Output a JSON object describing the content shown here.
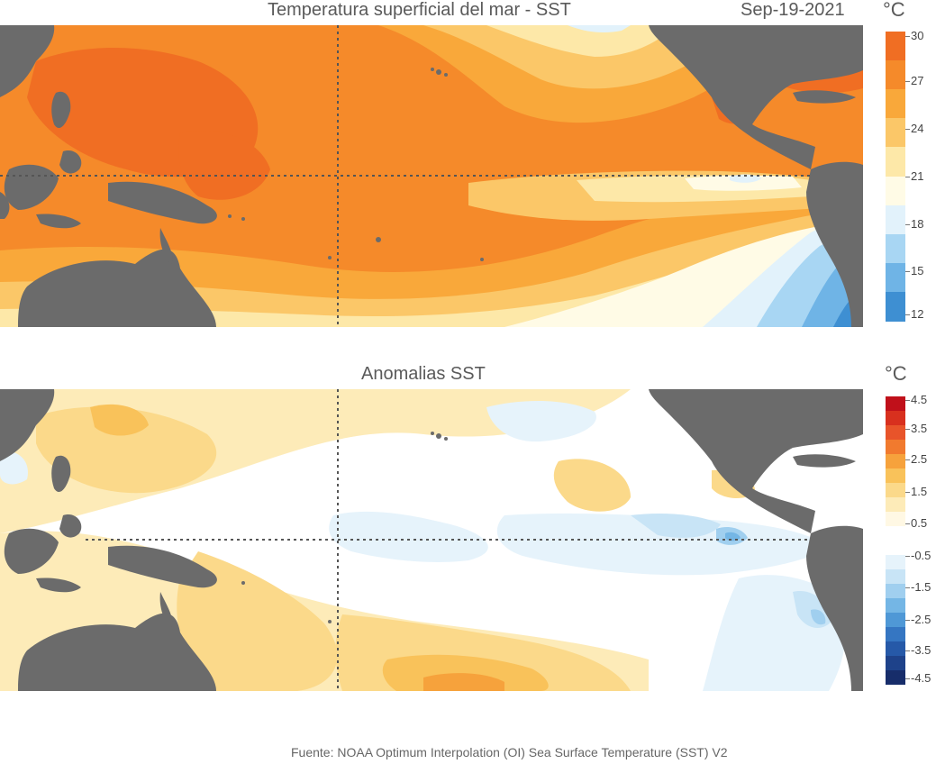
{
  "sst_panel": {
    "title": "Temperatura superficial del mar - SST",
    "date": "Sep-19-2021",
    "unit": "°C",
    "colorbar": {
      "ticks": [
        "30",
        "27",
        "24",
        "21",
        "18",
        "15",
        "12"
      ],
      "colors": [
        "#f06e23",
        "#f58a2a",
        "#f9a83a",
        "#fbc768",
        "#fde8a8",
        "#fffbe6",
        "#e2f2fb",
        "#a8d6f3",
        "#6fb4e6",
        "#3e8fd2"
      ]
    }
  },
  "anomaly_panel": {
    "title": "Anomalias SST",
    "unit": "°C",
    "colorbar": {
      "ticks": [
        "4.5",
        "3.5",
        "2.5",
        "1.5",
        "0.5",
        "-0.5",
        "-1.5",
        "-2.5",
        "-3.5",
        "-4.5"
      ],
      "colors": [
        "#c0101a",
        "#d8301e",
        "#e8542a",
        "#f17a2e",
        "#f6a23c",
        "#f9c25a",
        "#fbd98a",
        "#fdebb8",
        "#fff8e4",
        "#ffffff",
        "#ffffff",
        "#e6f3fb",
        "#c8e4f6",
        "#a0cfef",
        "#74b6e5",
        "#4f98d6",
        "#3576c2",
        "#2659a8",
        "#1e428a",
        "#172d6a"
      ]
    }
  },
  "footer": {
    "source": "Fuente: NOAA Optimum Interpolation (OI) Sea Surface Temperature (SST) V2"
  }
}
